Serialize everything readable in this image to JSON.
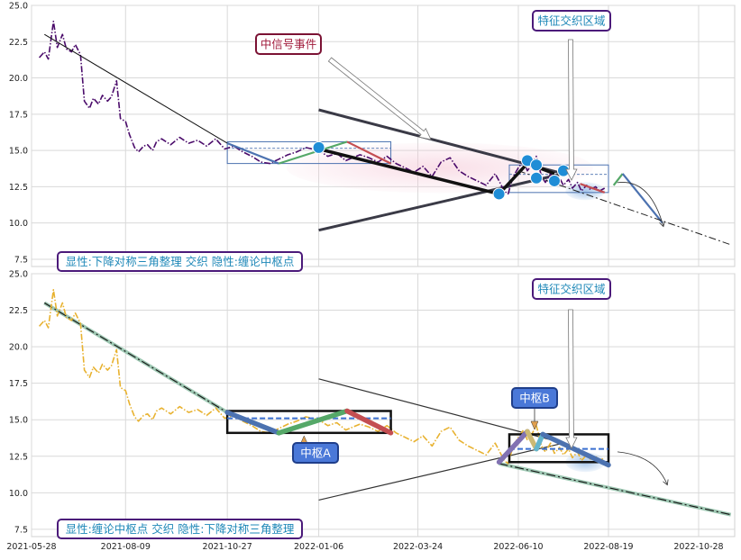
{
  "chart_data": [
    {
      "type": "line",
      "panel": "top",
      "xlim": [
        "2021-05-28",
        "2022-11-25"
      ],
      "ylim": [
        7,
        25
      ],
      "grid": true,
      "x_ticks": [
        "2021-05-28",
        "2021-08-09",
        "2021-10-27",
        "2022-01-06",
        "2022-03-24",
        "2022-06-10",
        "2022-08-19",
        "2022-10-28"
      ],
      "y_ticks": [
        "7.5",
        "10.0",
        "12.5",
        "15.0",
        "17.5",
        "20.0",
        "22.5",
        "25.0"
      ],
      "series": [
        {
          "color": "#4b0c6b",
          "style": "dashdot",
          "x": [
            "2021-06-03",
            "2021-06-07",
            "2021-06-10",
            "2021-06-14",
            "2021-06-17",
            "2021-06-21",
            "2021-06-24",
            "2021-06-28",
            "2021-07-01",
            "2021-07-05",
            "2021-07-08",
            "2021-07-12",
            "2021-07-15",
            "2021-07-19",
            "2021-07-22",
            "2021-07-26",
            "2021-07-29",
            "2021-08-02",
            "2021-08-05",
            "2021-08-09",
            "2021-08-12",
            "2021-08-16",
            "2021-08-19",
            "2021-08-23",
            "2021-08-26",
            "2021-08-30",
            "2021-09-02",
            "2021-09-06",
            "2021-09-13",
            "2021-09-20",
            "2021-09-27",
            "2021-10-04",
            "2021-10-11",
            "2021-10-18",
            "2021-10-25",
            "2021-11-01",
            "2021-11-08",
            "2021-11-15",
            "2021-11-22",
            "2021-11-29",
            "2021-12-06",
            "2021-12-13",
            "2021-12-20",
            "2021-12-27",
            "2022-01-06",
            "2022-01-13",
            "2022-01-20",
            "2022-01-27",
            "2022-02-07",
            "2022-02-14",
            "2022-02-21",
            "2022-02-28",
            "2022-03-07",
            "2022-03-14",
            "2022-03-21",
            "2022-03-28",
            "2022-04-04",
            "2022-04-11",
            "2022-04-18",
            "2022-04-25",
            "2022-05-02",
            "2022-05-09",
            "2022-05-16",
            "2022-05-23",
            "2022-05-26",
            "2022-05-30",
            "2022-06-02",
            "2022-06-06",
            "2022-06-10",
            "2022-06-14",
            "2022-06-17",
            "2022-06-21",
            "2022-06-24",
            "2022-06-28",
            "2022-07-01",
            "2022-07-05",
            "2022-07-08",
            "2022-07-12",
            "2022-07-15",
            "2022-07-19",
            "2022-07-22",
            "2022-07-26",
            "2022-07-29",
            "2022-08-02",
            "2022-08-05",
            "2022-08-09",
            "2022-08-12",
            "2022-08-16"
          ],
          "values": [
            21.4,
            21.8,
            21.3,
            23.9,
            22.1,
            23.0,
            22.0,
            21.8,
            22.3,
            21.6,
            18.4,
            17.9,
            18.6,
            18.2,
            18.8,
            18.4,
            18.7,
            19.8,
            17.2,
            17.0,
            16.1,
            15.2,
            14.9,
            15.3,
            15.4,
            15.0,
            15.6,
            15.8,
            15.4,
            15.9,
            15.5,
            15.7,
            15.3,
            15.8,
            15.1,
            15.3,
            14.9,
            14.6,
            14.2,
            14.1,
            14.4,
            14.7,
            14.9,
            15.2,
            15.0,
            14.6,
            14.8,
            14.3,
            14.7,
            14.5,
            14.2,
            14.6,
            14.1,
            13.8,
            13.5,
            13.9,
            13.2,
            14.2,
            14.5,
            13.6,
            13.2,
            12.9,
            12.6,
            13.4,
            12.9,
            12.2,
            12.0,
            13.2,
            13.8,
            14.3,
            13.6,
            14.1,
            14.6,
            13.2,
            12.8,
            13.4,
            12.7,
            13.1,
            12.6,
            13.0,
            12.4,
            12.8,
            12.2,
            12.6,
            12.3,
            12.5,
            12.2,
            12.4
          ]
        }
      ],
      "trend_segments": [
        {
          "from": [
            "2021-06-07",
            23.0
          ],
          "to": [
            "2021-10-27",
            15.5
          ]
        },
        {
          "from": [
            "2022-01-06",
            15.1
          ],
          "to": [
            "2022-05-26",
            12.0
          ]
        },
        {
          "from": [
            "2022-05-26",
            12.0
          ],
          "to": [
            "2022-06-17",
            14.1
          ]
        },
        {
          "from": [
            "2022-06-17",
            14.1
          ],
          "to": [
            "2022-07-08",
            13.4
          ]
        }
      ],
      "colored_segments": [
        {
          "from": [
            "2021-10-27",
            15.5
          ],
          "to": [
            "2021-12-06",
            14.1
          ],
          "color": "#4c72b0"
        },
        {
          "from": [
            "2021-12-06",
            14.1
          ],
          "to": [
            "2022-01-28",
            15.6
          ],
          "color": "#55a868"
        },
        {
          "from": [
            "2022-01-28",
            15.6
          ],
          "to": [
            "2022-03-03",
            14.1
          ],
          "color": "#c44e52"
        },
        {
          "from": [
            "2022-07-28",
            12.7
          ],
          "to": [
            "2022-08-16",
            12.1
          ],
          "color": "#c44e52"
        },
        {
          "from": [
            "2022-08-23",
            12.6
          ],
          "to": [
            "2022-08-30",
            13.4
          ],
          "color": "#55a868"
        },
        {
          "from": [
            "2022-08-30",
            13.4
          ],
          "to": [
            "2022-09-30",
            10.0
          ],
          "color": "#4c72b0"
        }
      ],
      "triangle_lines": [
        {
          "from": [
            "2022-01-06",
            17.8
          ],
          "to": [
            "2022-07-15",
            13.4
          ]
        },
        {
          "from": [
            "2022-01-06",
            9.5
          ],
          "to": [
            "2022-07-15",
            13.4
          ]
        }
      ],
      "extension_line": {
        "from": [
          "2022-06-10",
          13.6
        ],
        "to": [
          "2022-11-22",
          8.5
        ]
      },
      "markers": [
        {
          "x": "2022-01-06",
          "y": 15.2
        },
        {
          "x": "2022-05-26",
          "y": 12.0
        },
        {
          "x": "2022-06-17",
          "y": 14.3
        },
        {
          "x": "2022-06-24",
          "y": 14.0
        },
        {
          "x": "2022-06-24",
          "y": 13.1
        },
        {
          "x": "2022-07-08",
          "y": 12.9
        },
        {
          "x": "2022-07-15",
          "y": 13.6
        }
      ],
      "boxes": [
        {
          "x0": "2021-10-27",
          "x1": "2022-03-03",
          "y0": 14.1,
          "y1": 15.6
        },
        {
          "x0": "2022-06-03",
          "x1": "2022-08-19",
          "y0": 12.1,
          "y1": 14.0
        }
      ],
      "annotations": {
        "signal": "中信号事件",
        "feature": "特征交织区域",
        "status": "显性:下降对称三角整理 交织 隐性:缠论中枢点"
      }
    },
    {
      "type": "line",
      "panel": "bottom",
      "xlim": [
        "2021-05-28",
        "2022-11-25"
      ],
      "ylim": [
        7,
        25
      ],
      "grid": true,
      "x_ticks": [
        "2021-05-28",
        "2021-08-09",
        "2021-10-27",
        "2022-01-06",
        "2022-03-24",
        "2022-06-10",
        "2022-08-19",
        "2022-10-28"
      ],
      "y_ticks": [
        "7.5",
        "10.0",
        "12.5",
        "15.0",
        "17.5",
        "20.0",
        "22.5",
        "25.0"
      ],
      "series": [
        {
          "color": "#e8b230",
          "style": "dashdot",
          "x": [
            "2021-06-03",
            "2021-06-07",
            "2021-06-10",
            "2021-06-14",
            "2021-06-17",
            "2021-06-21",
            "2021-06-24",
            "2021-06-28",
            "2021-07-01",
            "2021-07-05",
            "2021-07-08",
            "2021-07-12",
            "2021-07-15",
            "2021-07-19",
            "2021-07-22",
            "2021-07-26",
            "2021-07-29",
            "2021-08-02",
            "2021-08-05",
            "2021-08-09",
            "2021-08-12",
            "2021-08-16",
            "2021-08-19",
            "2021-08-23",
            "2021-08-26",
            "2021-08-30",
            "2021-09-02",
            "2021-09-06",
            "2021-09-13",
            "2021-09-20",
            "2021-09-27",
            "2021-10-04",
            "2021-10-11",
            "2021-10-18",
            "2021-10-25",
            "2021-11-01",
            "2021-11-08",
            "2021-11-15",
            "2021-11-22",
            "2021-11-29",
            "2021-12-06",
            "2021-12-13",
            "2021-12-20",
            "2021-12-27",
            "2022-01-06",
            "2022-01-13",
            "2022-01-20",
            "2022-01-27",
            "2022-02-07",
            "2022-02-14",
            "2022-02-21",
            "2022-02-28",
            "2022-03-07",
            "2022-03-14",
            "2022-03-21",
            "2022-03-28",
            "2022-04-04",
            "2022-04-11",
            "2022-04-18",
            "2022-04-25",
            "2022-05-02",
            "2022-05-09",
            "2022-05-16",
            "2022-05-23",
            "2022-05-26",
            "2022-05-30",
            "2022-06-02",
            "2022-06-06",
            "2022-06-10",
            "2022-06-14",
            "2022-06-17",
            "2022-06-21",
            "2022-06-24",
            "2022-06-28",
            "2022-07-01",
            "2022-07-05",
            "2022-07-08",
            "2022-07-12",
            "2022-07-15",
            "2022-07-19",
            "2022-07-22",
            "2022-07-26",
            "2022-07-29",
            "2022-08-02",
            "2022-08-05",
            "2022-08-09",
            "2022-08-12",
            "2022-08-16"
          ],
          "values": [
            21.4,
            21.8,
            21.3,
            23.9,
            22.1,
            23.0,
            22.0,
            21.8,
            22.3,
            21.6,
            18.4,
            17.9,
            18.6,
            18.2,
            18.8,
            18.4,
            18.7,
            19.8,
            17.2,
            17.0,
            16.1,
            15.2,
            14.9,
            15.3,
            15.4,
            15.0,
            15.6,
            15.8,
            15.4,
            15.9,
            15.5,
            15.7,
            15.3,
            15.8,
            15.1,
            15.3,
            14.9,
            14.6,
            14.2,
            14.1,
            14.4,
            14.7,
            14.9,
            15.2,
            15.0,
            14.6,
            14.8,
            14.3,
            14.7,
            14.5,
            14.2,
            14.6,
            14.1,
            13.8,
            13.5,
            13.9,
            13.2,
            14.2,
            14.5,
            13.6,
            13.2,
            12.9,
            12.6,
            13.4,
            12.9,
            12.2,
            12.0,
            13.2,
            13.8,
            14.3,
            13.6,
            14.1,
            14.6,
            13.2,
            12.8,
            13.4,
            12.7,
            13.1,
            12.6,
            13.0,
            12.4,
            12.8,
            12.2,
            12.6,
            12.3,
            12.5,
            12.2,
            12.4
          ]
        }
      ],
      "trend_segments": [
        {
          "from": [
            "2021-06-07",
            23.0
          ],
          "to": [
            "2021-10-27",
            15.5
          ]
        },
        {
          "from": [
            "2022-05-26",
            12.0
          ],
          "to": [
            "2022-11-22",
            8.5
          ]
        }
      ],
      "colored_segments": [
        {
          "from": [
            "2021-10-27",
            15.5
          ],
          "to": [
            "2021-12-06",
            14.1
          ],
          "color": "#4c72b0"
        },
        {
          "from": [
            "2021-12-06",
            14.1
          ],
          "to": [
            "2022-01-28",
            15.6
          ],
          "color": "#55a868"
        },
        {
          "from": [
            "2022-01-28",
            15.6
          ],
          "to": [
            "2022-03-03",
            14.1
          ],
          "color": "#c44e52"
        },
        {
          "from": [
            "2022-05-26",
            12.1
          ],
          "to": [
            "2022-06-17",
            14.2
          ],
          "color": "#8172b2"
        },
        {
          "from": [
            "2022-06-17",
            14.2
          ],
          "to": [
            "2022-06-24",
            13.0
          ],
          "color": "#ccb974"
        },
        {
          "from": [
            "2022-06-24",
            13.0
          ],
          "to": [
            "2022-06-29",
            14.0
          ],
          "color": "#64b5cd"
        },
        {
          "from": [
            "2022-06-29",
            14.0
          ],
          "to": [
            "2022-08-19",
            11.9
          ],
          "color": "#4c72b0"
        }
      ],
      "triangle_lines": [
        {
          "from": [
            "2022-01-06",
            17.8
          ],
          "to": [
            "2022-07-15",
            13.4
          ]
        },
        {
          "from": [
            "2022-01-06",
            9.5
          ],
          "to": [
            "2022-07-15",
            13.4
          ]
        }
      ],
      "boxes": [
        {
          "x0": "2021-10-27",
          "x1": "2022-03-03",
          "y0": 14.1,
          "y1": 15.6,
          "mid": 15.1
        },
        {
          "x0": "2022-06-03",
          "x1": "2022-08-19",
          "y0": 12.1,
          "y1": 14.0,
          "mid": 13.0
        }
      ],
      "annotations": {
        "zhongshu_a": "中枢A",
        "zhongshu_b": "中枢B",
        "feature": "特征交织区域",
        "status": "显性:缠论中枢点 交织 隐性:下降对称三角整理"
      }
    }
  ]
}
